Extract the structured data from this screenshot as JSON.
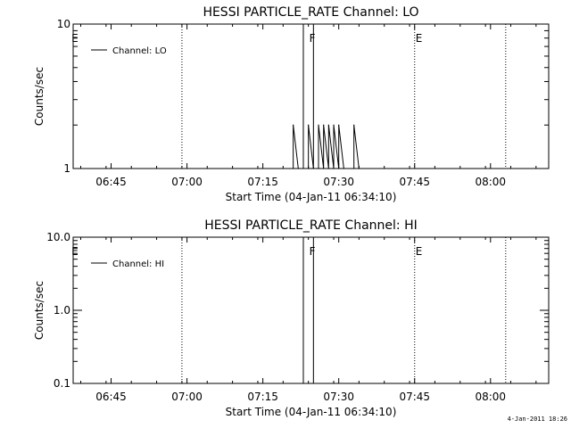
{
  "chart_data": [
    {
      "type": "line",
      "title": "HESSI PARTICLE_RATE Channel: LO",
      "xlabel": "Start Time (04-Jan-11 06:34:10)",
      "ylabel": "Counts/sec",
      "yscale": "log",
      "ylim": [
        1,
        10
      ],
      "xlim_minutes_after_0634": [
        3.5,
        97.5
      ],
      "x_tick_labels": [
        "06:45",
        "07:00",
        "07:15",
        "07:30",
        "07:45",
        "08:00"
      ],
      "y_tick_labels": [
        "1",
        "10"
      ],
      "legend": {
        "label": "Channel: LO",
        "position": "top-left"
      },
      "grid": false,
      "event_markers": [
        {
          "label": "E",
          "time": "06:37"
        },
        {
          "label": "F",
          "time": "07:24"
        },
        {
          "label": "E",
          "time": "07:45"
        }
      ],
      "dotted_lines": [
        "06:59",
        "07:45",
        "08:03"
      ],
      "solid_lines": [
        "07:23",
        "07:25"
      ],
      "series": [
        {
          "name": "Channel: LO",
          "points": [
            [
              "07:21",
              1
            ],
            [
              "07:21",
              2
            ],
            [
              "07:22",
              1
            ],
            [
              "07:24",
              1
            ],
            [
              "07:24",
              2
            ],
            [
              "07:25",
              1
            ],
            [
              "07:26",
              1
            ],
            [
              "07:26",
              2
            ],
            [
              "07:27",
              1
            ],
            [
              "07:27",
              2
            ],
            [
              "07:28",
              1
            ],
            [
              "07:28",
              2
            ],
            [
              "07:29",
              1
            ],
            [
              "07:29",
              2
            ],
            [
              "07:30",
              1
            ],
            [
              "07:30",
              2
            ],
            [
              "07:31",
              1
            ],
            [
              "07:33",
              1
            ],
            [
              "07:33",
              2
            ],
            [
              "07:34",
              1
            ]
          ]
        }
      ]
    },
    {
      "type": "line",
      "title": "HESSI PARTICLE_RATE Channel: HI",
      "xlabel": "Start Time (04-Jan-11 06:34:10)",
      "ylabel": "Counts/sec",
      "yscale": "log",
      "ylim": [
        0.1,
        10
      ],
      "xlim_minutes_after_0634": [
        3.5,
        97.5
      ],
      "x_tick_labels": [
        "06:45",
        "07:00",
        "07:15",
        "07:30",
        "07:45",
        "08:00"
      ],
      "y_tick_labels": [
        "0.1",
        "1.0",
        "10.0"
      ],
      "legend": {
        "label": "Channel: HI",
        "position": "top-left"
      },
      "grid": false,
      "event_markers": [
        {
          "label": "E",
          "time": "06:37"
        },
        {
          "label": "F",
          "time": "07:24"
        },
        {
          "label": "E",
          "time": "07:45"
        }
      ],
      "dotted_lines": [
        "06:59",
        "07:45",
        "08:03"
      ],
      "solid_lines": [
        "07:23",
        "07:25"
      ],
      "series": [
        {
          "name": "Channel: HI",
          "points": []
        }
      ]
    }
  ],
  "footer": {
    "timestamp": "4-Jan-2011 18:26"
  }
}
